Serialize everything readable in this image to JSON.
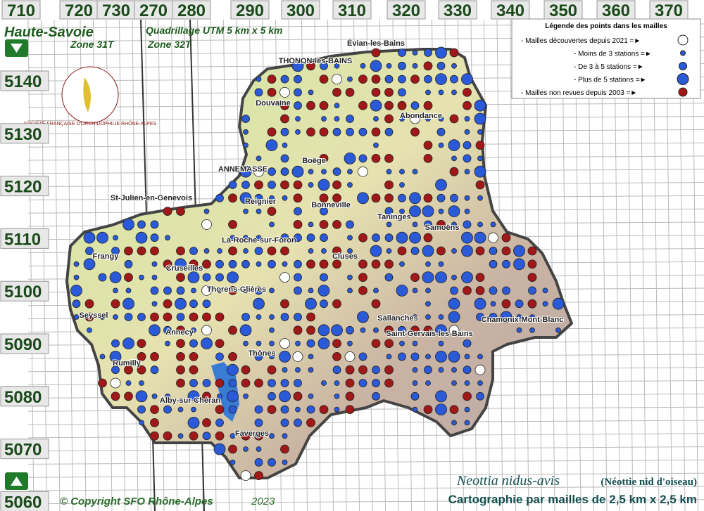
{
  "header": {
    "title": "Haute-Savoie",
    "zone_31": "Zone 31T",
    "grid_title": "Quadrillage UTM 5 km x 5 km",
    "zone_32": "Zone 32T"
  },
  "axes": {
    "top": [
      "710",
      "720",
      "730",
      "270",
      "280",
      "290",
      "300",
      "310",
      "320",
      "330",
      "340",
      "350",
      "360",
      "370"
    ],
    "left": [
      "5140",
      "5130",
      "5120",
      "5110",
      "5100",
      "5090",
      "5080",
      "5070",
      "5060"
    ]
  },
  "legend": {
    "title": "Légende des points dans les mailles",
    "items": [
      "- Mailles découvertes depuis 2021 =►",
      "- Moins de 3 stations =►",
      "- De 3 à 5 stations =►",
      "- Plus de 5 stations =►",
      "- Mailles non revues depuis 2003 =►"
    ]
  },
  "towns": [
    "Évian-les-Bains",
    "THONON-les-BAINS",
    "Douvaine",
    "Boëge",
    "ANNEMASSE",
    "St-Julien-en-Genevois",
    "Reignier",
    "La-Roche-sur-Foron",
    "Taninges",
    "Samoëns",
    "Frangy",
    "Cruseilles",
    "Thorens-Glières",
    "Bonneville",
    "Cluses",
    "Seyssel",
    "Annecy",
    "Rumilly",
    "Thônes",
    "Alby-sur-Chéran",
    "Faverges",
    "Sallanches",
    "Saint-Gervais-les-Bains",
    "Chamonix-Mont-Blanc",
    "Abondance"
  ],
  "logo": "SOCIÉTÉ FRANÇAISE D'ORCHIDOPHILIE RHÔNE-ALPES",
  "footer": {
    "species": "Neottia nidus-avis",
    "common": "(Néottie nid d'oiseau)",
    "caption": "Cartographie par mailles de 2,5 km x 2,5 km",
    "copyright": "© Copyright SFO Rhône-Alpes",
    "year": "2023"
  }
}
